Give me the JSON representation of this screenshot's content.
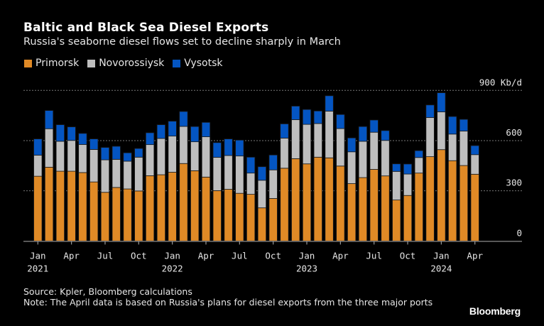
{
  "chart_data": {
    "type": "bar",
    "stacked": true,
    "title": "Baltic and Black Sea Diesel Exports",
    "subtitle": "Russia's seaborne diesel flows set to decline sharply in March",
    "xlabel": "",
    "ylabel": "Kb/d",
    "ylim": [
      0,
      900
    ],
    "yticks": [
      0,
      300,
      600,
      900
    ],
    "ytick_labels": [
      "0",
      "300",
      "600",
      "900 Kb/d"
    ],
    "grid": true,
    "legend_position": "top-left",
    "categories": [
      "2021-01",
      "2021-02",
      "2021-03",
      "2021-04",
      "2021-05",
      "2021-06",
      "2021-07",
      "2021-08",
      "2021-09",
      "2021-10",
      "2021-11",
      "2021-12",
      "2022-01",
      "2022-02",
      "2022-03",
      "2022-04",
      "2022-05",
      "2022-06",
      "2022-07",
      "2022-08",
      "2022-09",
      "2022-10",
      "2022-11",
      "2022-12",
      "2023-01",
      "2023-02",
      "2023-03",
      "2023-04",
      "2023-05",
      "2023-06",
      "2023-07",
      "2023-08",
      "2023-09",
      "2023-10",
      "2023-11",
      "2023-12",
      "2024-01",
      "2024-02",
      "2024-03",
      "2024-04"
    ],
    "xtick_labels": [
      {
        "index": 0,
        "month": "Jan",
        "year": "2021"
      },
      {
        "index": 3,
        "month": "Apr",
        "year": ""
      },
      {
        "index": 6,
        "month": "Jul",
        "year": ""
      },
      {
        "index": 9,
        "month": "Oct",
        "year": ""
      },
      {
        "index": 12,
        "month": "Jan",
        "year": "2022"
      },
      {
        "index": 15,
        "month": "Apr",
        "year": ""
      },
      {
        "index": 18,
        "month": "Jul",
        "year": ""
      },
      {
        "index": 21,
        "month": "Oct",
        "year": ""
      },
      {
        "index": 24,
        "month": "Jan",
        "year": "2023"
      },
      {
        "index": 27,
        "month": "Apr",
        "year": ""
      },
      {
        "index": 30,
        "month": "Jul",
        "year": ""
      },
      {
        "index": 33,
        "month": "Oct",
        "year": ""
      },
      {
        "index": 36,
        "month": "Jan",
        "year": "2024"
      },
      {
        "index": 39,
        "month": "Apr",
        "year": ""
      }
    ],
    "series": [
      {
        "name": "Primorsk",
        "color": "#E08A26",
        "values": [
          387,
          441,
          417,
          417,
          409,
          353,
          291,
          320,
          311,
          299,
          390,
          396,
          411,
          463,
          420,
          382,
          301,
          309,
          285,
          279,
          198,
          254,
          435,
          492,
          461,
          501,
          497,
          448,
          343,
          379,
          428,
          389,
          245,
          272,
          406,
          504,
          546,
          480,
          451,
          399
        ]
      },
      {
        "name": "Novorossiysk",
        "color": "#BEBEBE",
        "values": [
          126,
          230,
          179,
          184,
          168,
          194,
          194,
          168,
          166,
          202,
          186,
          217,
          216,
          222,
          173,
          241,
          199,
          202,
          223,
          127,
          165,
          171,
          180,
          233,
          236,
          201,
          279,
          224,
          190,
          217,
          222,
          212,
          171,
          128,
          93,
          234,
          226,
          159,
          206,
          117
        ]
      },
      {
        "name": "Vysotsk",
        "color": "#0455C2",
        "values": [
          97,
          109,
          99,
          81,
          66,
          63,
          74,
          78,
          50,
          52,
          71,
          82,
          89,
          89,
          91,
          86,
          88,
          99,
          95,
          95,
          81,
          89,
          85,
          81,
          89,
          75,
          92,
          84,
          83,
          88,
          73,
          59,
          45,
          60,
          41,
          75,
          114,
          105,
          70,
          54
        ]
      }
    ]
  },
  "footer": {
    "source": "Source: Kpler, Bloomberg calculations",
    "note": "Note: The April data is based on Russia's plans for diesel exports from the three major ports",
    "brand": "Bloomberg"
  }
}
